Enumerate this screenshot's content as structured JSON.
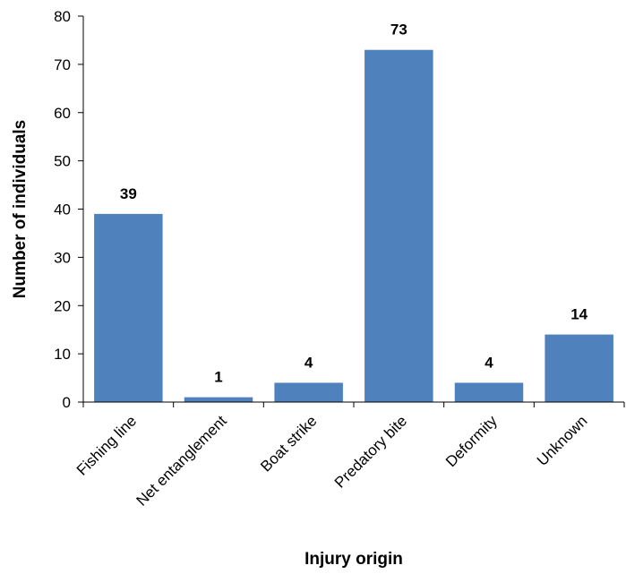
{
  "chart_data": {
    "type": "bar",
    "categories": [
      "Fishing line",
      "Net entanglement",
      "Boat strike",
      "Predatory bite",
      "Deformity",
      "Unknown"
    ],
    "values": [
      39,
      1,
      4,
      73,
      4,
      14
    ],
    "data_labels": [
      "39",
      "1",
      "4",
      "73",
      "4",
      "14"
    ],
    "title": "",
    "xlabel": "Injury origin",
    "ylabel": "Number of individuals",
    "ylim": [
      0,
      80
    ],
    "yticks": [
      0,
      10,
      20,
      30,
      40,
      50,
      60,
      70,
      80
    ],
    "grid": false,
    "legend": "none",
    "bar_color": "#4f81bd"
  }
}
